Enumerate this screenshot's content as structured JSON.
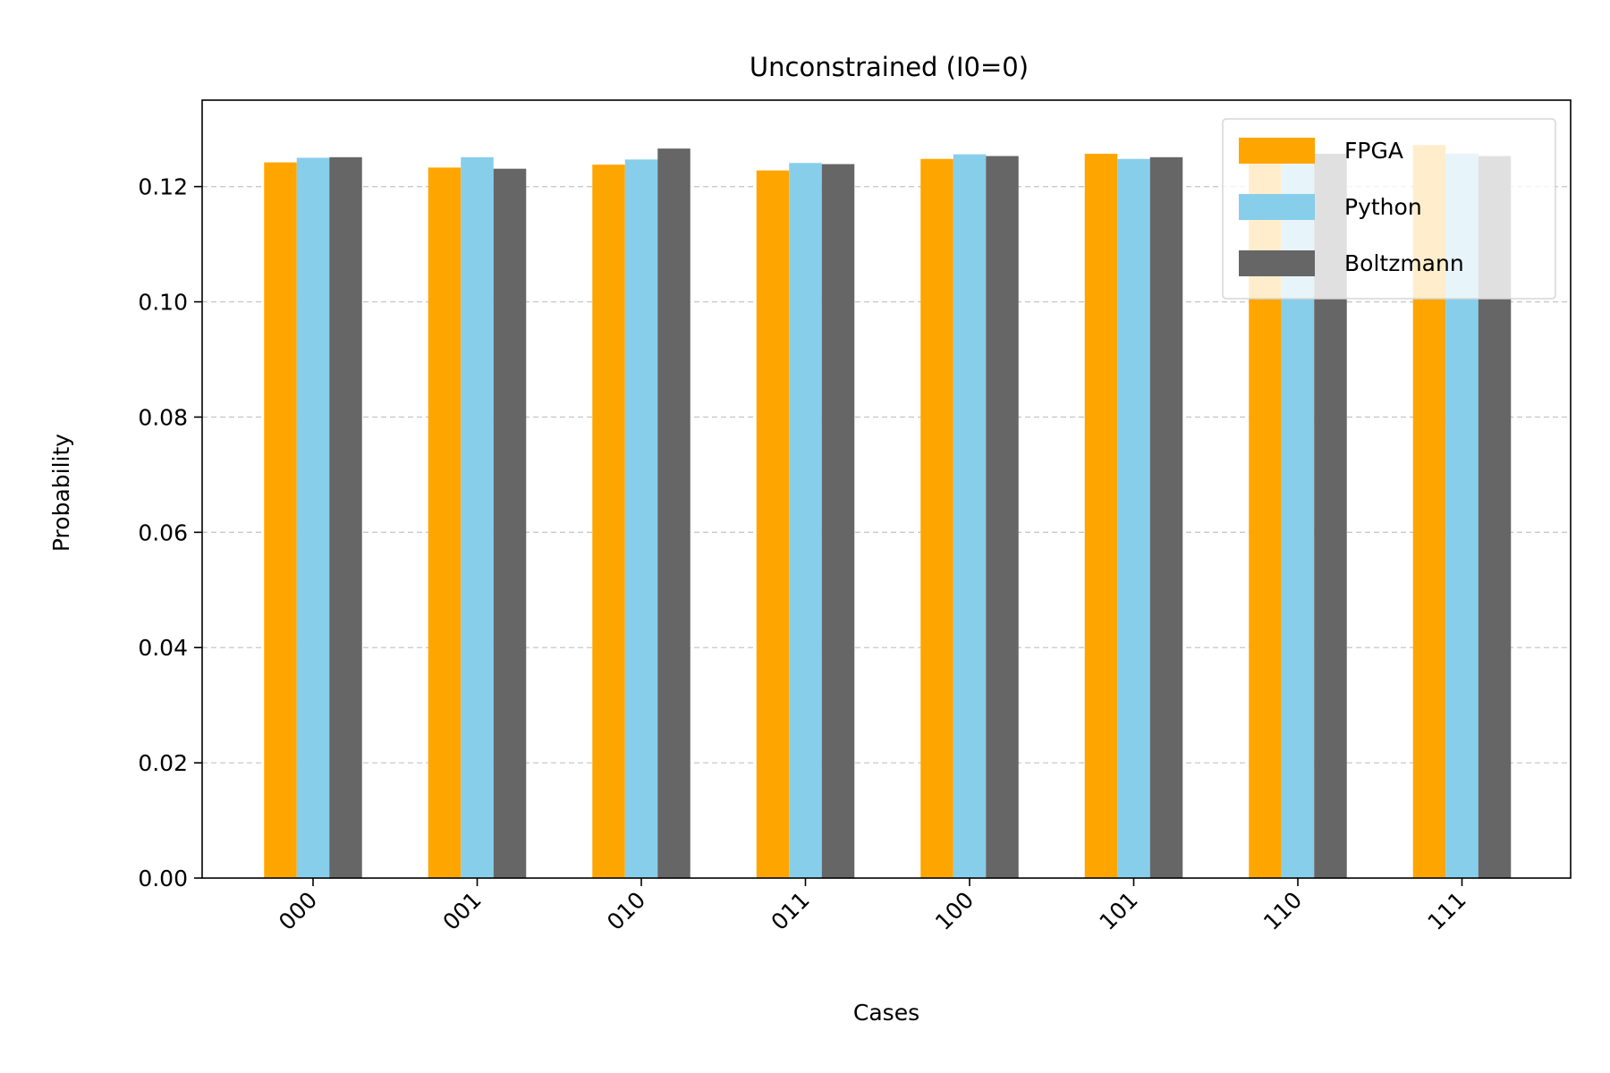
{
  "chart_data": {
    "type": "bar",
    "title": "Unconstrained (I0=0)",
    "xlabel": "Cases",
    "ylabel": "Probability",
    "categories": [
      "000",
      "001",
      "010",
      "011",
      "100",
      "101",
      "110",
      "111"
    ],
    "series": [
      {
        "name": "FPGA",
        "color": "#FFA500",
        "values": [
          0.1242,
          0.1233,
          0.1238,
          0.1228,
          0.1248,
          0.1257,
          0.1252,
          0.1272
        ]
      },
      {
        "name": "Python",
        "color": "#87CEEB",
        "values": [
          0.125,
          0.1251,
          0.1247,
          0.1241,
          0.1256,
          0.1248,
          0.125,
          0.1257
        ]
      },
      {
        "name": "Boltzmann",
        "color": "#666666",
        "values": [
          0.1251,
          0.1231,
          0.1266,
          0.1239,
          0.1253,
          0.1251,
          0.1257,
          0.1253
        ]
      }
    ],
    "ylim": [
      0,
      0.135
    ],
    "yticks": [
      "0.00",
      "0.02",
      "0.04",
      "0.06",
      "0.08",
      "0.10",
      "0.12"
    ],
    "grid": "y, dashed",
    "legend_position": "top-right"
  }
}
